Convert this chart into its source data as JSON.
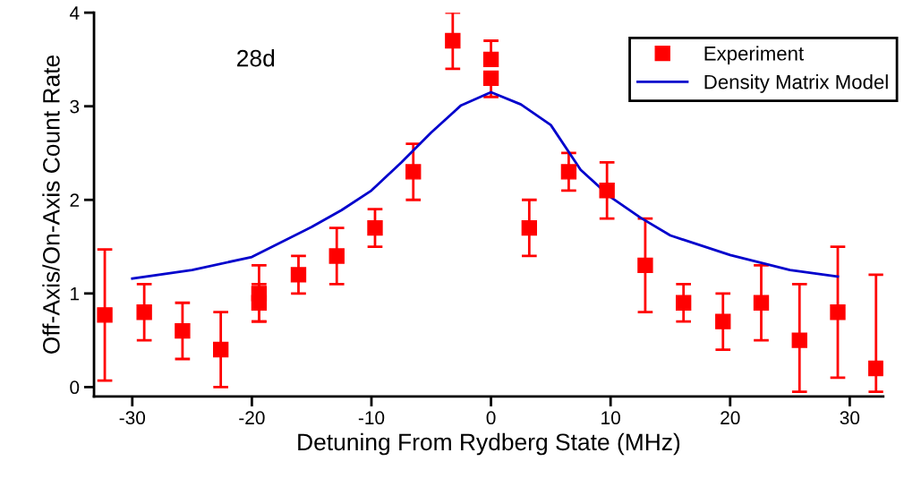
{
  "chart_data": {
    "type": "scatter",
    "xlabel": "Detuning From Rydberg State (MHz)",
    "ylabel": "Off-Axis/On-Axis Count Rate",
    "annotations": [
      "28d"
    ],
    "xlim": [
      -33.2,
      32.8
    ],
    "ylim": [
      -0.1,
      4
    ],
    "xticks": [
      -30,
      -20,
      -10,
      0,
      10,
      20,
      30
    ],
    "yticks": [
      0,
      1,
      2,
      3,
      4
    ],
    "grid": false,
    "legend": "top right",
    "series": [
      {
        "name": "Experiment",
        "color": "#ff0000",
        "marker": "square",
        "x": [
          -32.3,
          -29,
          -25.8,
          -22.6,
          -19.4,
          -19.4,
          -16.1,
          -12.9,
          -9.7,
          -6.5,
          -3.2,
          0,
          0,
          3.2,
          6.5,
          9.7,
          12.9,
          16.1,
          19.4,
          22.6,
          25.8,
          29,
          32.2
        ],
        "values": [
          0.77,
          0.8,
          0.6,
          0.4,
          0.9,
          1.0,
          1.2,
          1.4,
          1.7,
          2.3,
          3.7,
          3.5,
          3.3,
          1.7,
          2.3,
          2.1,
          1.3,
          0.9,
          0.7,
          0.9,
          0.5,
          0.8,
          0.2
        ],
        "errors": [
          [
            0.07,
            1.47
          ],
          [
            0.5,
            1.1
          ],
          [
            0.3,
            0.9
          ],
          [
            0.0,
            0.8
          ],
          [
            0.7,
            1.1
          ],
          [
            0.7,
            1.3
          ],
          [
            1.0,
            1.4
          ],
          [
            1.1,
            1.7
          ],
          [
            1.5,
            1.9
          ],
          [
            2.0,
            2.6
          ],
          [
            3.4,
            4.0
          ],
          [
            3.5,
            3.7
          ],
          [
            3.1,
            3.3
          ],
          [
            1.4,
            2.0
          ],
          [
            2.1,
            2.5
          ],
          [
            1.8,
            2.4
          ],
          [
            0.8,
            1.8
          ],
          [
            0.7,
            1.1
          ],
          [
            0.4,
            1.0
          ],
          [
            0.5,
            1.3
          ],
          [
            -0.05,
            1.1
          ],
          [
            0.1,
            1.5
          ],
          [
            -0.05,
            1.2
          ]
        ]
      },
      {
        "name": "Density Matrix Model",
        "type": "line",
        "color": "#0000cc",
        "marker": "none",
        "line_style": "solid",
        "x": [
          -30,
          -25,
          -20,
          -15,
          -12.5,
          -10,
          -7.5,
          -5,
          -2.5,
          0,
          2.5,
          5,
          7.5,
          10,
          12.5,
          15,
          20,
          25,
          29
        ],
        "values": [
          1.16,
          1.25,
          1.39,
          1.71,
          1.89,
          2.1,
          2.4,
          2.72,
          3.01,
          3.15,
          3.02,
          2.8,
          2.32,
          2.03,
          1.81,
          1.62,
          1.41,
          1.25,
          1.18
        ]
      }
    ]
  }
}
